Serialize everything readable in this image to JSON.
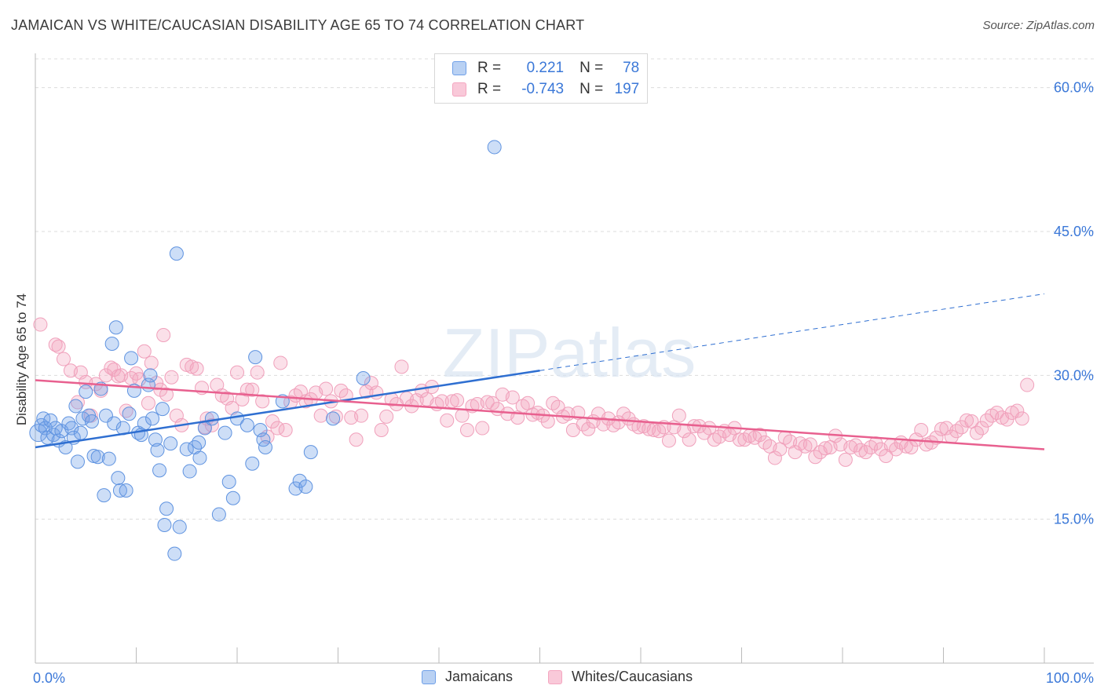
{
  "title": "JAMAICAN VS WHITE/CAUCASIAN DISABILITY AGE 65 TO 74 CORRELATION CHART",
  "source": "Source: ZipAtlas.com",
  "watermark": "ZIPatlas",
  "legend": {
    "rows": [
      {
        "r_label": "R =",
        "r_value": "0.221",
        "n_label": "N =",
        "n_value": "78"
      },
      {
        "r_label": "R =",
        "r_value": "-0.743",
        "n_label": "N =",
        "n_value": "197"
      }
    ]
  },
  "bottom_legend": {
    "jamaicans": "Jamaicans",
    "whites": "Whites/Caucasians"
  },
  "colors": {
    "blue": "#6fa0e8",
    "blue_line": "#2f6fd1",
    "pink": "#f4a6c0",
    "pink_line": "#e8608f",
    "tick_text": "#3b78d8"
  },
  "chart_data": {
    "type": "scatter",
    "ylabel": "Disability Age 65 to 74",
    "xlim": [
      0,
      100
    ],
    "ylim": [
      0,
      63
    ],
    "x_tick_labels": [
      "0.0%",
      "100.0%"
    ],
    "y_ticks": [
      15,
      30,
      45,
      60
    ],
    "y_tick_labels": [
      "15.0%",
      "30.0%",
      "45.0%",
      "60.0%"
    ],
    "grid": true,
    "series": [
      {
        "name": "Jamaicans",
        "color": "#6fa0e8",
        "trend": {
          "x": [
            0,
            50
          ],
          "y": [
            22.5,
            30.5
          ],
          "dashed_to": [
            100,
            38.5
          ]
        },
        "points": [
          [
            0.3,
            24
          ],
          [
            0.6,
            24.8
          ],
          [
            0.8,
            25.5
          ],
          [
            1,
            24.5
          ],
          [
            1.2,
            23.5
          ],
          [
            1.5,
            25.3
          ],
          [
            1.8,
            23.8
          ],
          [
            2,
            24.5
          ],
          [
            2.3,
            23.2
          ],
          [
            2.6,
            24.2
          ],
          [
            3,
            22.5
          ],
          [
            3.3,
            25
          ],
          [
            3.6,
            24.5
          ],
          [
            3.8,
            23.5
          ],
          [
            4,
            26.8
          ],
          [
            4.2,
            21
          ],
          [
            4.5,
            24
          ],
          [
            4.7,
            25.5
          ],
          [
            5,
            28.3
          ],
          [
            5.3,
            25.8
          ],
          [
            5.6,
            25.2
          ],
          [
            5.8,
            21.6
          ],
          [
            6.2,
            21.5
          ],
          [
            6.5,
            28.6
          ],
          [
            6.8,
            17.5
          ],
          [
            7,
            25.8
          ],
          [
            7.3,
            21.3
          ],
          [
            7.6,
            33.3
          ],
          [
            7.8,
            25
          ],
          [
            8,
            35
          ],
          [
            8.2,
            19.3
          ],
          [
            8.4,
            18
          ],
          [
            8.7,
            24.5
          ],
          [
            9,
            18
          ],
          [
            9.3,
            26
          ],
          [
            9.5,
            31.8
          ],
          [
            9.8,
            28.4
          ],
          [
            10.2,
            24
          ],
          [
            10.5,
            23.8
          ],
          [
            10.8,
            25
          ],
          [
            11.2,
            29
          ],
          [
            11.4,
            30
          ],
          [
            11.6,
            25.5
          ],
          [
            11.9,
            23.3
          ],
          [
            12.1,
            22.2
          ],
          [
            12.3,
            20.1
          ],
          [
            12.6,
            26.5
          ],
          [
            12.8,
            14.4
          ],
          [
            13,
            16.1
          ],
          [
            13.4,
            22.9
          ],
          [
            13.8,
            11.4
          ],
          [
            14,
            42.7
          ],
          [
            14.3,
            14.2
          ],
          [
            15,
            22.3
          ],
          [
            15.3,
            20
          ],
          [
            15.8,
            22.5
          ],
          [
            16.2,
            23
          ],
          [
            16.3,
            21.4
          ],
          [
            16.8,
            24.5
          ],
          [
            17.5,
            25.5
          ],
          [
            18.2,
            15.5
          ],
          [
            18.8,
            24
          ],
          [
            19.2,
            18.9
          ],
          [
            19.6,
            17.2
          ],
          [
            20,
            25.5
          ],
          [
            21,
            24.8
          ],
          [
            21.5,
            20.8
          ],
          [
            21.8,
            31.9
          ],
          [
            22.3,
            24.3
          ],
          [
            22.6,
            23.3
          ],
          [
            22.8,
            22.5
          ],
          [
            24.5,
            27.3
          ],
          [
            25.8,
            18.2
          ],
          [
            26.2,
            19
          ],
          [
            26.8,
            18.4
          ],
          [
            27.3,
            22
          ],
          [
            29.5,
            25.5
          ],
          [
            32.5,
            29.7
          ],
          [
            45.5,
            53.8
          ]
        ]
      },
      {
        "name": "Whites/Caucasians",
        "color": "#f4a6c0",
        "trend": {
          "x": [
            0,
            100
          ],
          "y": [
            29.5,
            22.3
          ]
        },
        "points": [
          [
            0.5,
            35.3
          ],
          [
            2,
            33.2
          ],
          [
            2.3,
            33
          ],
          [
            2.8,
            31.7
          ],
          [
            3.5,
            30.5
          ],
          [
            4.2,
            27.2
          ],
          [
            4.5,
            30.3
          ],
          [
            5,
            29.3
          ],
          [
            5.5,
            25.8
          ],
          [
            6,
            29.1
          ],
          [
            6.5,
            28.4
          ],
          [
            7,
            30
          ],
          [
            7.5,
            30.8
          ],
          [
            7.8,
            30.6
          ],
          [
            8.2,
            29.9
          ],
          [
            8.5,
            30
          ],
          [
            9,
            26.3
          ],
          [
            9.5,
            29.7
          ],
          [
            10,
            30.2
          ],
          [
            10.3,
            29.6
          ],
          [
            10.8,
            32.5
          ],
          [
            11.2,
            27.1
          ],
          [
            11.5,
            31.3
          ],
          [
            12,
            29.2
          ],
          [
            12.4,
            28.5
          ],
          [
            12.7,
            34.2
          ],
          [
            13,
            28
          ],
          [
            13.5,
            29.8
          ],
          [
            14,
            25.8
          ],
          [
            14.5,
            24.8
          ],
          [
            15,
            31.1
          ],
          [
            15.5,
            30.9
          ],
          [
            16,
            30.7
          ],
          [
            16.5,
            28.7
          ],
          [
            16.8,
            24.6
          ],
          [
            17,
            25.5
          ],
          [
            17.5,
            24.8
          ],
          [
            18,
            29
          ],
          [
            18.5,
            27.9
          ],
          [
            19,
            27.6
          ],
          [
            19.5,
            26.6
          ],
          [
            20,
            30.3
          ],
          [
            20.5,
            27.5
          ],
          [
            21,
            28.5
          ],
          [
            21.5,
            28.5
          ],
          [
            22,
            30.3
          ],
          [
            22.5,
            27.3
          ],
          [
            23,
            23.6
          ],
          [
            23.5,
            25.2
          ],
          [
            24,
            24.5
          ],
          [
            24.3,
            31.3
          ],
          [
            24.8,
            24.3
          ],
          [
            25.3,
            27.2
          ],
          [
            25.8,
            27.9
          ],
          [
            26.3,
            28.3
          ],
          [
            26.8,
            27.3
          ],
          [
            27.3,
            27.5
          ],
          [
            27.8,
            28.2
          ],
          [
            28.3,
            25.8
          ],
          [
            28.8,
            28.6
          ],
          [
            29.3,
            27.3
          ],
          [
            29.8,
            25.7
          ],
          [
            30.3,
            28.4
          ],
          [
            30.8,
            27.9
          ],
          [
            31.3,
            25.6
          ],
          [
            31.8,
            23.3
          ],
          [
            32.3,
            25.8
          ],
          [
            32.8,
            28.3
          ],
          [
            33.3,
            29.2
          ],
          [
            33.8,
            28.2
          ],
          [
            34.3,
            24.3
          ],
          [
            34.8,
            25.7
          ],
          [
            35.3,
            27.5
          ],
          [
            35.8,
            27
          ],
          [
            36.3,
            30.9
          ],
          [
            36.8,
            27.6
          ],
          [
            37.3,
            26.8
          ],
          [
            37.8,
            27.4
          ],
          [
            38.3,
            28.4
          ],
          [
            38.8,
            27.5
          ],
          [
            39.3,
            28.8
          ],
          [
            39.8,
            27
          ],
          [
            40.3,
            27.3
          ],
          [
            40.8,
            25.3
          ],
          [
            41.3,
            27.3
          ],
          [
            41.8,
            27.4
          ],
          [
            42.3,
            25.8
          ],
          [
            42.8,
            24.3
          ],
          [
            43.3,
            26.8
          ],
          [
            43.8,
            27
          ],
          [
            44.3,
            24.5
          ],
          [
            44.8,
            27.2
          ],
          [
            45.3,
            27.1
          ],
          [
            45.8,
            26.5
          ],
          [
            46.3,
            28
          ],
          [
            46.8,
            26
          ],
          [
            47.3,
            27.7
          ],
          [
            47.8,
            25.6
          ],
          [
            48.3,
            26.8
          ],
          [
            48.8,
            27.1
          ],
          [
            49.3,
            25.9
          ],
          [
            49.8,
            26.1
          ],
          [
            50.3,
            25.8
          ],
          [
            50.8,
            25.2
          ],
          [
            51.3,
            27.1
          ],
          [
            51.8,
            26.7
          ],
          [
            52.3,
            25.7
          ],
          [
            52.8,
            26
          ],
          [
            53.3,
            24.3
          ],
          [
            53.8,
            26.1
          ],
          [
            54.3,
            24.9
          ],
          [
            54.8,
            24.4
          ],
          [
            55.3,
            25.2
          ],
          [
            55.8,
            26
          ],
          [
            56.3,
            24.9
          ],
          [
            56.8,
            25.5
          ],
          [
            57.3,
            24.8
          ],
          [
            57.8,
            25.1
          ],
          [
            58.3,
            26
          ],
          [
            58.8,
            25.5
          ],
          [
            59.3,
            24.9
          ],
          [
            59.8,
            24.6
          ],
          [
            60.3,
            24.7
          ],
          [
            60.8,
            24.4
          ],
          [
            61.3,
            24.3
          ],
          [
            61.8,
            24.2
          ],
          [
            62.3,
            24.6
          ],
          [
            62.8,
            23.2
          ],
          [
            63.3,
            24.6
          ],
          [
            63.8,
            25.8
          ],
          [
            64.3,
            24.2
          ],
          [
            64.8,
            23.3
          ],
          [
            65.3,
            24.7
          ],
          [
            65.8,
            24.7
          ],
          [
            66.3,
            24
          ],
          [
            66.8,
            24.5
          ],
          [
            67.3,
            23.3
          ],
          [
            67.8,
            23.6
          ],
          [
            68.3,
            24.2
          ],
          [
            68.8,
            23.8
          ],
          [
            69.3,
            24.5
          ],
          [
            69.8,
            23.3
          ],
          [
            70.3,
            23.3
          ],
          [
            70.8,
            23.7
          ],
          [
            71.3,
            23.5
          ],
          [
            71.8,
            23.8
          ],
          [
            72.3,
            23
          ],
          [
            72.8,
            22.6
          ],
          [
            73.3,
            21.4
          ],
          [
            73.8,
            22.3
          ],
          [
            74.3,
            23.5
          ],
          [
            74.8,
            23.1
          ],
          [
            75.3,
            22
          ],
          [
            75.8,
            22.9
          ],
          [
            76.3,
            22.6
          ],
          [
            76.8,
            22.8
          ],
          [
            77.3,
            21.5
          ],
          [
            77.8,
            22
          ],
          [
            78.3,
            22.4
          ],
          [
            78.8,
            22.5
          ],
          [
            79.3,
            23.7
          ],
          [
            79.8,
            22.8
          ],
          [
            80.3,
            21.2
          ],
          [
            80.8,
            22.5
          ],
          [
            81.3,
            22.7
          ],
          [
            81.8,
            22.2
          ],
          [
            82.3,
            22
          ],
          [
            82.8,
            22.5
          ],
          [
            83.3,
            22.9
          ],
          [
            83.8,
            22.3
          ],
          [
            84.3,
            21.6
          ],
          [
            84.8,
            22.7
          ],
          [
            85.3,
            22.3
          ],
          [
            85.8,
            23
          ],
          [
            86.3,
            22.6
          ],
          [
            86.8,
            22.5
          ],
          [
            87.3,
            23.3
          ],
          [
            87.8,
            24.3
          ],
          [
            88.3,
            22.8
          ],
          [
            88.8,
            23
          ],
          [
            89.3,
            23.5
          ],
          [
            89.8,
            24.4
          ],
          [
            90.3,
            24.5
          ],
          [
            90.8,
            23.6
          ],
          [
            91.3,
            24.2
          ],
          [
            91.8,
            24.6
          ],
          [
            92.3,
            25.3
          ],
          [
            92.8,
            25.2
          ],
          [
            93.3,
            24
          ],
          [
            93.8,
            24.5
          ],
          [
            94.3,
            25.3
          ],
          [
            94.8,
            25.8
          ],
          [
            95.3,
            26.1
          ],
          [
            95.8,
            25.6
          ],
          [
            96.3,
            25.4
          ],
          [
            96.8,
            26.1
          ],
          [
            97.3,
            26.3
          ],
          [
            97.8,
            25.5
          ],
          [
            98.3,
            29
          ]
        ]
      }
    ]
  }
}
